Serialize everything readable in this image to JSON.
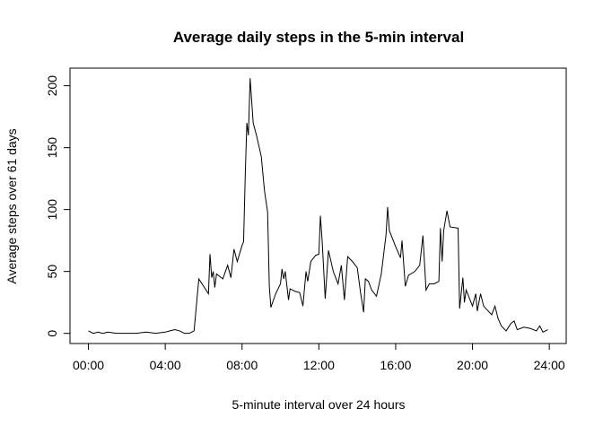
{
  "chart_data": {
    "type": "line",
    "title": "Average daily steps in the 5-min interval",
    "x_label": "5-minute interval over 24 hours",
    "y_label": "Average steps over 61 days",
    "x": [
      0,
      0.25,
      0.5,
      0.75,
      1,
      1.5,
      2,
      2.5,
      3,
      3.5,
      4,
      4.25,
      4.5,
      4.75,
      5,
      5.25,
      5.5,
      5.75,
      6,
      6.25,
      6.33,
      6.42,
      6.5,
      6.58,
      6.67,
      7,
      7.25,
      7.42,
      7.58,
      7.75,
      8,
      8.08,
      8.17,
      8.25,
      8.33,
      8.42,
      8.58,
      8.75,
      9,
      9.17,
      9.33,
      9.42,
      9.5,
      9.75,
      10,
      10.08,
      10.17,
      10.25,
      10.42,
      10.5,
      10.75,
      11,
      11.17,
      11.33,
      11.42,
      11.58,
      11.83,
      12,
      12.08,
      12.17,
      12.33,
      12.5,
      12.75,
      13,
      13.17,
      13.33,
      13.5,
      13.75,
      14,
      14.17,
      14.33,
      14.42,
      14.58,
      14.75,
      15,
      15.25,
      15.5,
      15.58,
      15.67,
      16,
      16.25,
      16.33,
      16.5,
      16.67,
      17,
      17.25,
      17.42,
      17.58,
      17.75,
      18,
      18.25,
      18.33,
      18.42,
      18.5,
      18.67,
      18.83,
      19.25,
      19.33,
      19.5,
      19.58,
      19.67,
      20,
      20.17,
      20.25,
      20.42,
      20.58,
      21,
      21.17,
      21.33,
      21.5,
      21.75,
      22,
      22.17,
      22.33,
      22.67,
      23,
      23.33,
      23.5,
      23.67,
      23.92
    ],
    "series": [
      {
        "color": "#000000",
        "values": [
          2,
          0,
          1,
          0,
          1,
          0,
          0,
          0,
          1,
          0,
          1,
          2,
          3,
          2,
          0,
          0,
          2,
          44,
          38,
          32,
          64,
          45,
          50,
          37,
          48,
          44,
          55,
          45,
          68,
          58,
          71,
          74,
          130,
          170,
          160,
          206,
          170,
          160,
          143,
          115,
          98,
          38,
          21,
          32,
          40,
          52,
          44,
          50,
          27,
          36,
          34,
          33,
          22,
          50,
          42,
          58,
          63,
          64,
          95,
          75,
          28,
          67,
          50,
          40,
          55,
          27,
          62,
          58,
          53,
          33,
          17,
          44,
          42,
          35,
          30,
          48,
          80,
          102,
          83,
          70,
          61,
          75,
          38,
          47,
          50,
          55,
          79,
          35,
          40,
          40,
          42,
          85,
          58,
          83,
          99,
          86,
          85,
          20,
          45,
          25,
          35,
          22,
          32,
          18,
          32,
          22,
          15,
          22,
          12,
          6,
          2,
          8,
          10,
          3,
          5,
          4,
          2,
          6,
          1,
          3
        ]
      }
    ],
    "xlim": [
      -0.96,
      24.88
    ],
    "ylim": [
      -8.2,
      214.2
    ],
    "xticks": [
      {
        "value": 0,
        "label": "00:00"
      },
      {
        "value": 4,
        "label": "04:00"
      },
      {
        "value": 8,
        "label": "08:00"
      },
      {
        "value": 12,
        "label": "12:00"
      },
      {
        "value": 16,
        "label": "16:00"
      },
      {
        "value": 20,
        "label": "20:00"
      },
      {
        "value": 24,
        "label": "24:00"
      }
    ],
    "yticks": [
      0,
      50,
      100,
      150,
      200
    ]
  }
}
